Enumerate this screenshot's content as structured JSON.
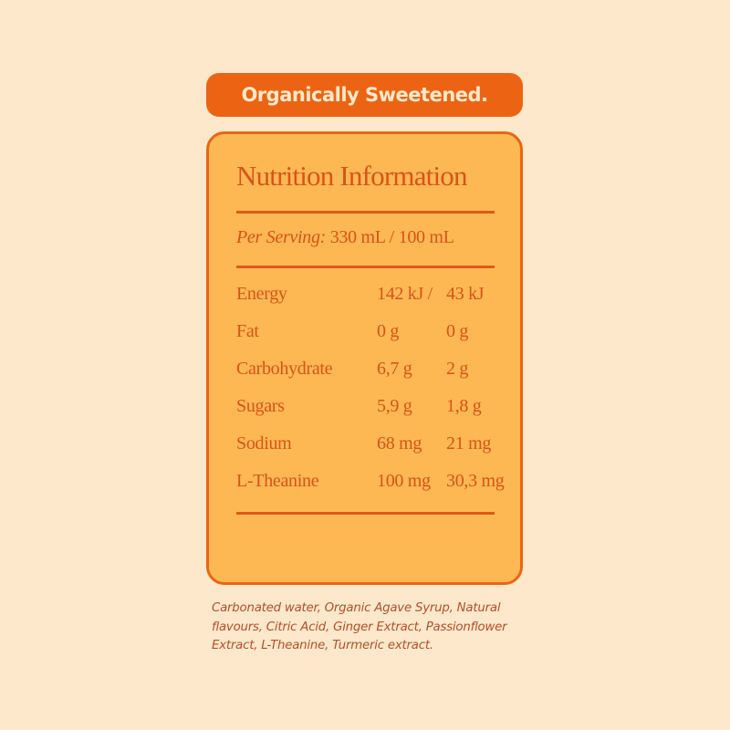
{
  "banner": {
    "label": "Organically Sweetened."
  },
  "panel": {
    "title": "Nutrition Information",
    "serving_label": "Per Serving:",
    "serving_value": "330 mL / 100 mL",
    "rows": [
      {
        "name": "Energy",
        "per_serving": "142 kJ /",
        "per_100": "43 kJ"
      },
      {
        "name": "Fat",
        "per_serving": "0 g",
        "per_100": "0 g"
      },
      {
        "name": "Carbohydrate",
        "per_serving": "6,7 g",
        "per_100": "2 g"
      },
      {
        "name": "Sugars",
        "per_serving": "5,9 g",
        "per_100": "1,8 g"
      },
      {
        "name": "Sodium",
        "per_serving": "68 mg",
        "per_100": "21 mg"
      },
      {
        "name": "L-Theanine",
        "per_serving": "100 mg",
        "per_100": "30,3 mg"
      }
    ]
  },
  "ingredients": "Carbonated water, Organic Agave Syrup, Natural flavours, Citric Acid, Ginger Extract, Passionflower Extract, L-Theanine, Turmeric extract.",
  "colors": {
    "background": "#fde8cb",
    "accent": "#ec6413",
    "panel": "#fdb854",
    "text": "#d9531a"
  }
}
